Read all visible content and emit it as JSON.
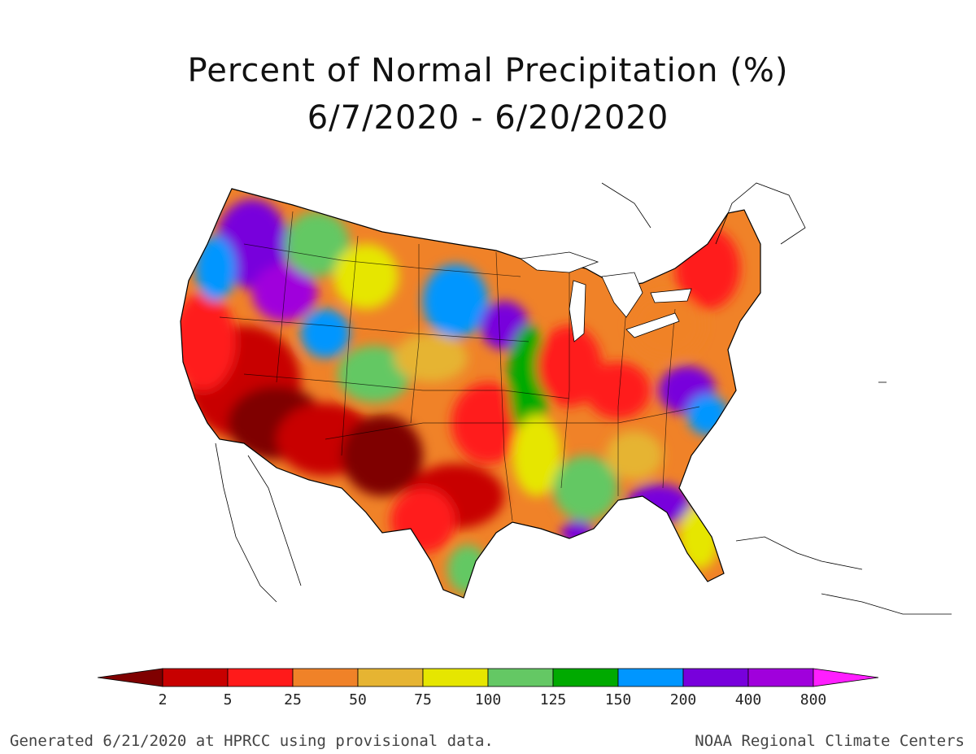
{
  "title": {
    "line1": "Percent of Normal Precipitation (%)",
    "line2": "6/7/2020 - 6/20/2020"
  },
  "legend": {
    "colors": [
      "#7f0000",
      "#c80000",
      "#ff1a1a",
      "#f08228",
      "#e6b432",
      "#e6e600",
      "#64c864",
      "#00aa00",
      "#0096ff",
      "#7800dc",
      "#a000dc",
      "#ff1eff"
    ],
    "labels": [
      "2",
      "5",
      "25",
      "50",
      "75",
      "100",
      "125",
      "150",
      "200",
      "400",
      "800"
    ]
  },
  "footer": {
    "left": "Generated 6/21/2020 at HPRCC using provisional data.",
    "right": "NOAA Regional Climate Centers"
  }
}
